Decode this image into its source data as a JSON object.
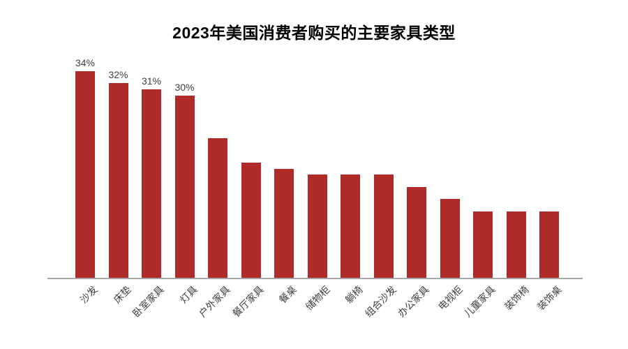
{
  "chart_data": {
    "type": "bar",
    "title": "2023年美国消费者购买的主要家具类型",
    "categories": [
      "沙发",
      "床垫",
      "卧室家具",
      "灯具",
      "户外家具",
      "餐厅家具",
      "餐桌",
      "储物柜",
      "躺椅",
      "组合沙发",
      "办公家具",
      "电视柜",
      "儿童家具",
      "装饰椅",
      "装饰桌"
    ],
    "values": [
      34,
      32,
      31,
      30,
      23,
      19,
      18,
      17,
      17,
      17,
      15,
      13,
      11,
      11,
      11
    ],
    "data_labels": [
      "34%",
      "32%",
      "31%",
      "30%",
      "",
      "",
      "",
      "",
      "",
      "",
      "",
      "",
      "",
      "",
      ""
    ],
    "unit": "%",
    "xlabel": "",
    "ylabel": "",
    "ylim": [
      0,
      36
    ],
    "grid": false,
    "legend_position": "none",
    "colors": {
      "bar": "#af2b29",
      "data_label": "#404040",
      "category_label": "#404040",
      "title": "#000000",
      "axis_line": "#a6a6a6",
      "background": "#ffffff"
    }
  }
}
